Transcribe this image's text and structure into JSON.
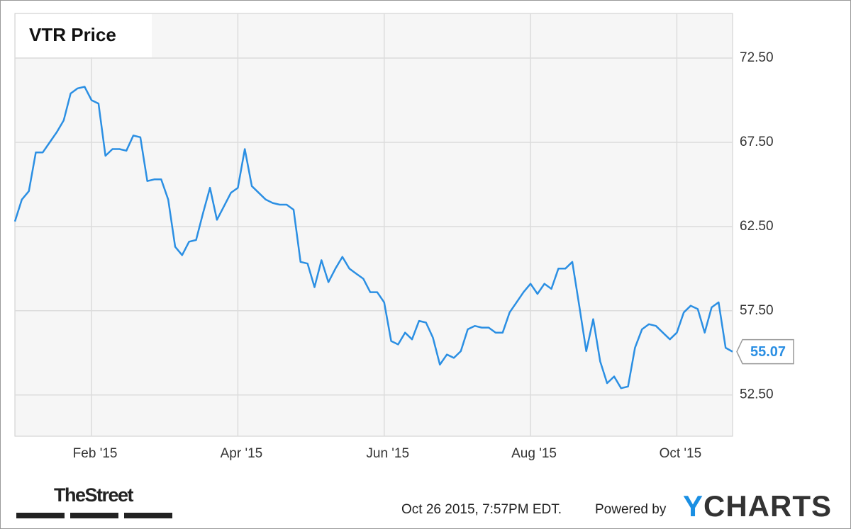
{
  "chart_data": {
    "type": "line",
    "title": "VTR Price",
    "categories": [
      null,
      null,
      null,
      null,
      null,
      null,
      null,
      null,
      null,
      null,
      null,
      "Feb '15",
      null,
      null,
      null,
      null,
      null,
      null,
      null,
      null,
      null,
      null,
      null,
      null,
      null,
      null,
      null,
      null,
      null,
      null,
      null,
      null,
      "Apr '15",
      null,
      null,
      null,
      null,
      null,
      null,
      null,
      null,
      null,
      null,
      null,
      null,
      null,
      null,
      null,
      null,
      null,
      null,
      null,
      null,
      "Jun '15",
      null,
      null,
      null,
      null,
      null,
      null,
      null,
      null,
      null,
      null,
      null,
      null,
      null,
      null,
      null,
      null,
      null,
      null,
      null,
      null,
      "Aug '15",
      null,
      null,
      null,
      null,
      null,
      null,
      null,
      null,
      null,
      null,
      null,
      null,
      null,
      null,
      null,
      null,
      null,
      null,
      null,
      null,
      "Oct '15",
      null,
      null,
      null,
      null,
      null,
      null,
      null,
      null
    ],
    "series": [
      {
        "name": "VTR",
        "color": "#2b8fe3",
        "values": [
          62.8,
          64.1,
          64.6,
          66.9,
          66.9,
          67.5,
          68.1,
          68.8,
          70.4,
          70.7,
          70.8,
          70.0,
          69.8,
          66.7,
          67.1,
          67.1,
          67.0,
          67.9,
          67.8,
          65.2,
          65.3,
          65.3,
          64.1,
          61.3,
          60.8,
          61.6,
          61.7,
          63.3,
          64.8,
          62.9,
          63.7,
          64.5,
          64.8,
          67.1,
          64.9,
          64.5,
          64.1,
          63.9,
          63.8,
          63.8,
          63.5,
          60.4,
          60.3,
          58.9,
          60.5,
          59.2,
          60.0,
          60.7,
          60.0,
          59.7,
          59.4,
          58.6,
          58.6,
          58.0,
          55.7,
          55.5,
          56.2,
          55.8,
          56.9,
          56.8,
          55.9,
          54.3,
          54.9,
          54.7,
          55.1,
          56.4,
          56.6,
          56.5,
          56.5,
          56.2,
          56.2,
          57.4,
          58.0,
          58.6,
          59.1,
          58.5,
          59.1,
          58.8,
          60.0,
          60.0,
          60.4,
          57.8,
          55.1,
          57.0,
          54.5,
          53.2,
          53.6,
          52.9,
          53.0,
          55.3,
          56.4,
          56.7,
          56.6,
          56.2,
          55.8,
          56.2,
          57.4,
          57.8,
          57.6,
          56.2,
          57.7,
          58.0,
          55.3,
          55.07
        ]
      }
    ],
    "ylim": [
      50.05,
      75.15
    ],
    "yticks": [
      {
        "value": 52.5,
        "label": "52.50"
      },
      {
        "value": 57.5,
        "label": "57.50"
      },
      {
        "value": 62.5,
        "label": "62.50"
      },
      {
        "value": 67.5,
        "label": "67.50"
      },
      {
        "value": 72.5,
        "label": "72.50"
      }
    ],
    "grid": true
  },
  "footer": {
    "publisher": "TheStreet",
    "timestamp": "Oct 26 2015, 7:57PM EDT.",
    "powered_by": "Powered by",
    "brand": "YCHARTS"
  }
}
